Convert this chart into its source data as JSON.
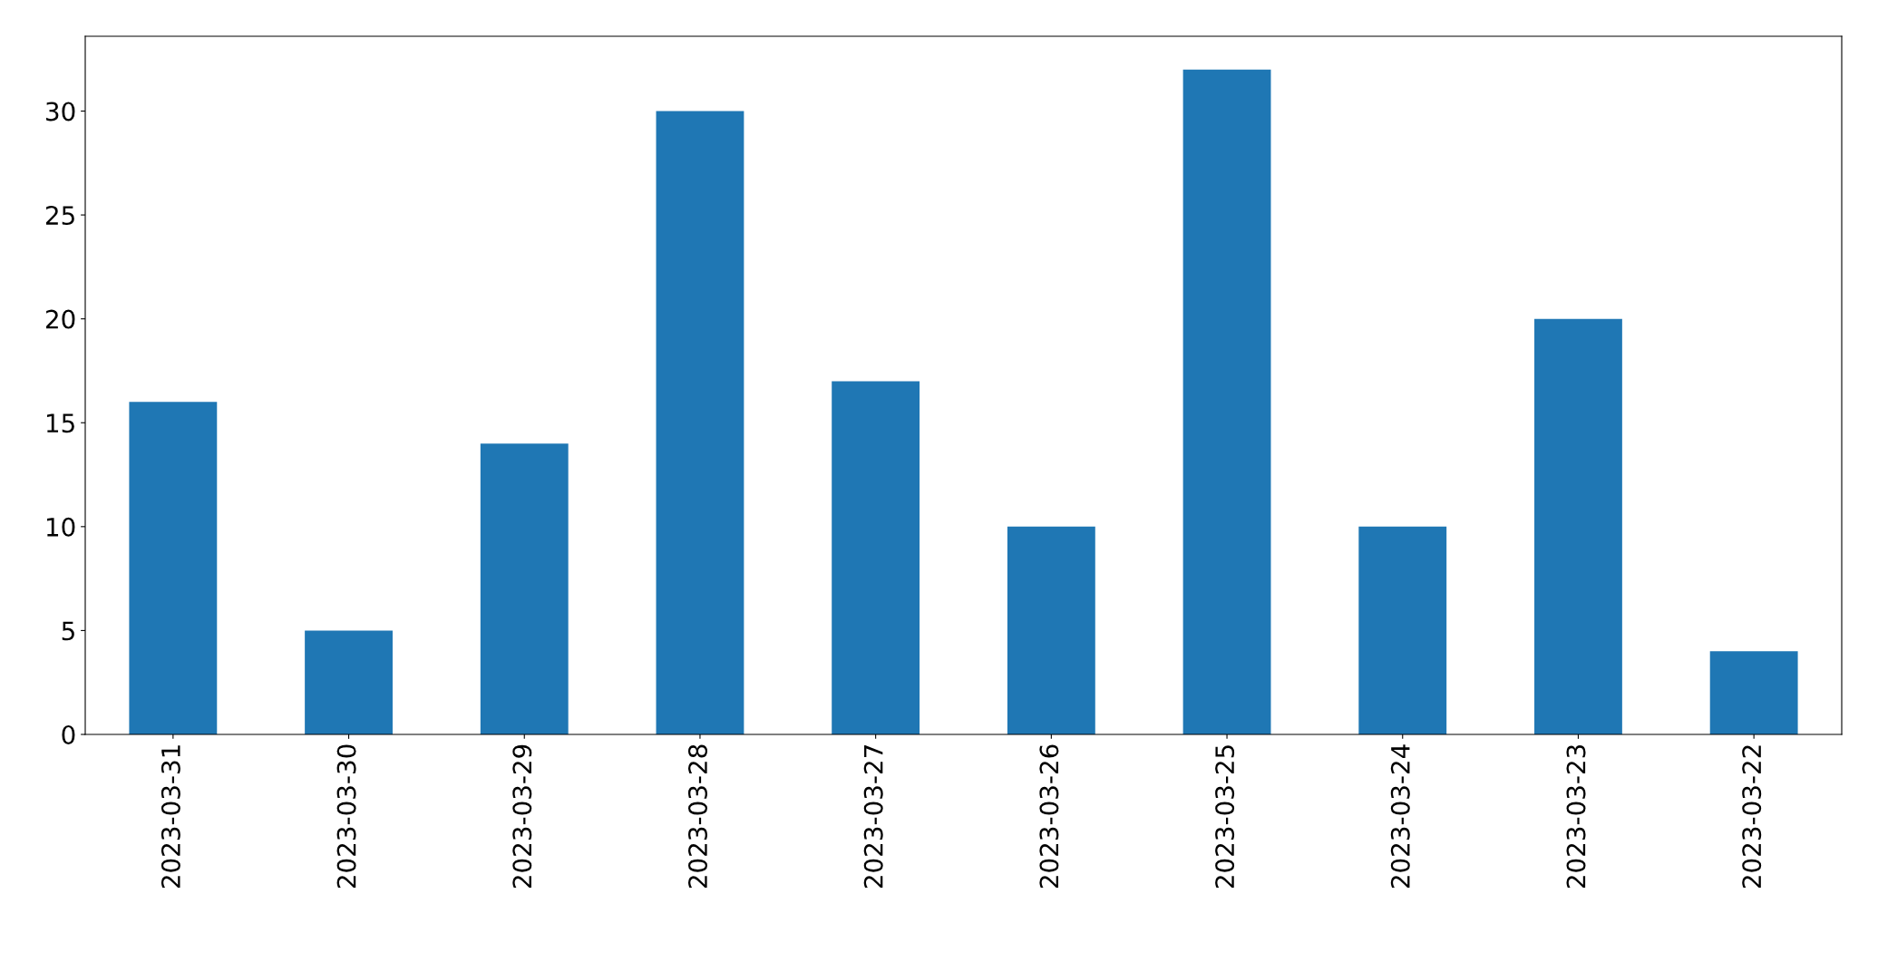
{
  "chart_data": {
    "type": "bar",
    "categories": [
      "2023-03-31",
      "2023-03-30",
      "2023-03-29",
      "2023-03-28",
      "2023-03-27",
      "2023-03-26",
      "2023-03-25",
      "2023-03-24",
      "2023-03-23",
      "2023-03-22"
    ],
    "values": [
      16,
      5,
      14,
      30,
      17,
      10,
      32,
      10,
      20,
      4
    ],
    "color": "#1f77b4",
    "ylim": [
      0,
      33.6
    ],
    "yticks": [
      0,
      5,
      10,
      15,
      20,
      25,
      30
    ],
    "grid": false,
    "legend": false
  }
}
